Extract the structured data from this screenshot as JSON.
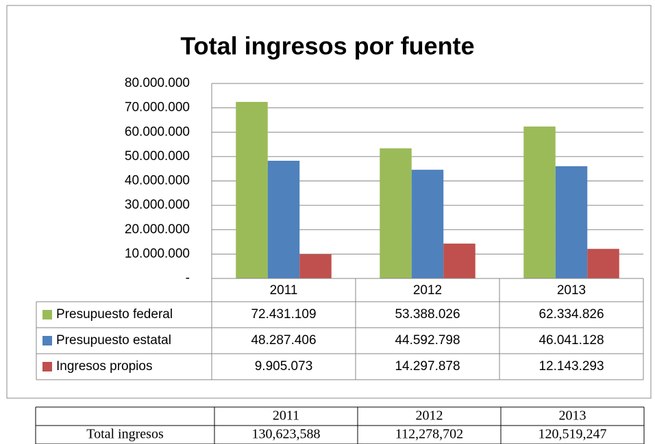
{
  "chart_data": {
    "type": "bar",
    "title": "Total ingresos por fuente",
    "categories": [
      "2011",
      "2012",
      "2013"
    ],
    "series": [
      {
        "name": "Presupuesto federal",
        "color": "#9bbb59",
        "values": [
          72431109,
          53388026,
          62334826
        ],
        "value_labels": [
          "72.431.109",
          "53.388.026",
          "62.334.826"
        ]
      },
      {
        "name": "Presupuesto estatal",
        "color": "#4f81bd",
        "values": [
          48287406,
          44592798,
          46041128
        ],
        "value_labels": [
          "48.287.406",
          "44.592.798",
          "46.041.128"
        ]
      },
      {
        "name": "Ingresos propios",
        "color": "#c0504d",
        "values": [
          9905073,
          14297878,
          12143293
        ],
        "value_labels": [
          "9.905.073",
          "14.297.878",
          "12.143.293"
        ]
      }
    ],
    "ylim": [
      0,
      80000000
    ],
    "yticks": [
      {
        "value": 0,
        "label": "-"
      },
      {
        "value": 10000000,
        "label": "10.000.000"
      },
      {
        "value": 20000000,
        "label": "20.000.000"
      },
      {
        "value": 30000000,
        "label": "30.000.000"
      },
      {
        "value": 40000000,
        "label": "40.000.000"
      },
      {
        "value": 50000000,
        "label": "50.000.000"
      },
      {
        "value": 60000000,
        "label": "60.000.000"
      },
      {
        "value": 70000000,
        "label": "70.000.000"
      },
      {
        "value": 80000000,
        "label": "80.000.000"
      }
    ],
    "grid": true
  },
  "table": {
    "header": [
      "2011",
      "2012",
      "2013"
    ],
    "rows": [
      {
        "label": "Total ingresos",
        "values": [
          "130,623,588",
          "112,278,702",
          "120,519,247"
        ]
      }
    ]
  }
}
